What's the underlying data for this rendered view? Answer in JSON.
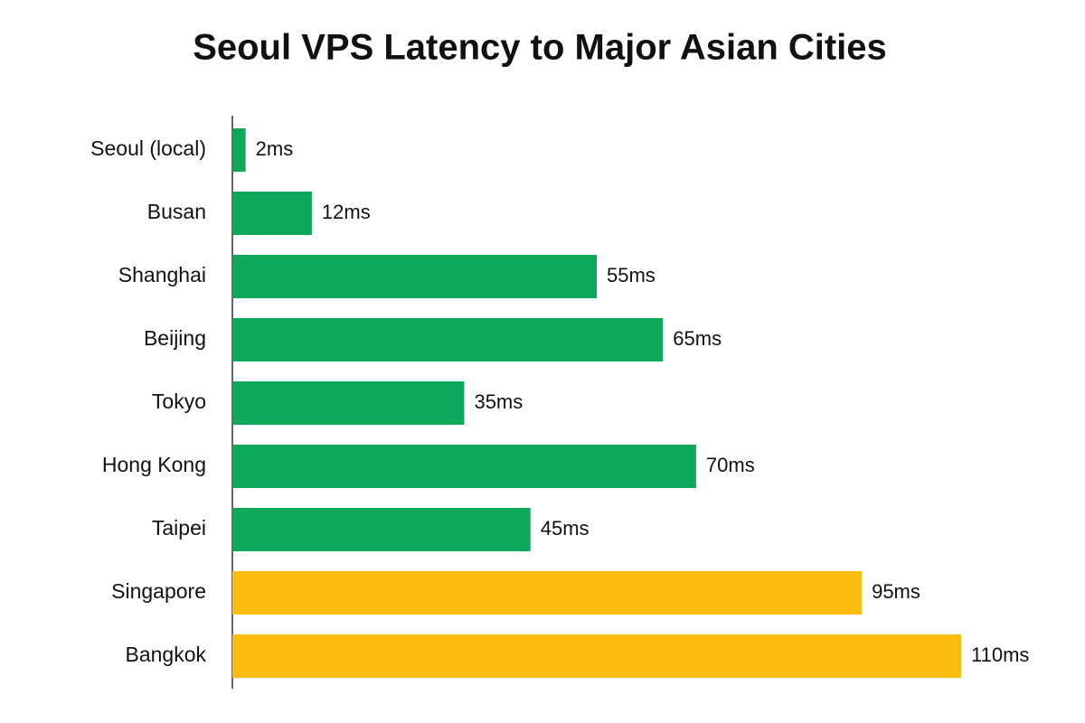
{
  "chart_data": {
    "type": "bar",
    "orientation": "horizontal",
    "title": "Seoul VPS Latency to Major Asian Cities",
    "categories": [
      "Seoul (local)",
      "Busan",
      "Shanghai",
      "Beijing",
      "Tokyo",
      "Hong Kong",
      "Taipei",
      "Singapore",
      "Bangkok"
    ],
    "values": [
      2,
      12,
      55,
      65,
      35,
      70,
      45,
      95,
      110
    ],
    "value_labels": [
      "2ms",
      "12ms",
      "55ms",
      "65ms",
      "35ms",
      "70ms",
      "45ms",
      "95ms",
      "110ms"
    ],
    "colors": [
      "#0ea85a",
      "#0ea85a",
      "#0ea85a",
      "#0ea85a",
      "#0ea85a",
      "#0ea85a",
      "#0ea85a",
      "#fbbd0f",
      "#fbbd0f"
    ]
  }
}
